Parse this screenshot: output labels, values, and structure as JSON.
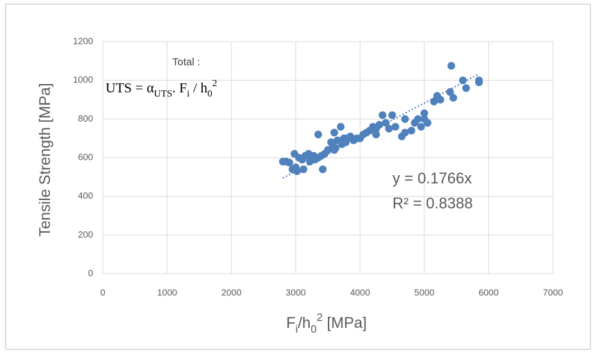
{
  "chart_data": {
    "type": "scatter",
    "title_parts": [
      {
        "text": "Total :"
      }
    ],
    "formula_parts": [
      {
        "text": "UTS = α"
      },
      {
        "text": "UTS",
        "style": "sub"
      },
      {
        "text": ". F"
      },
      {
        "text": "i",
        "style": "sub"
      },
      {
        "text": " / h"
      },
      {
        "text": "0",
        "style": "sub"
      },
      {
        "text": "2",
        "style": "sup"
      }
    ],
    "x_label_parts": [
      {
        "text": "F"
      },
      {
        "text": "i",
        "style": "sub"
      },
      {
        "text": "/h"
      },
      {
        "text": "0",
        "style": "sub"
      },
      {
        "text": "2",
        "style": "sup"
      },
      {
        "text": " [MPa]"
      }
    ],
    "y_label": "Tensile Strength [MPa]",
    "x": [
      2800,
      2850,
      2900,
      2950,
      2980,
      3000,
      3020,
      3050,
      3100,
      3120,
      3150,
      3200,
      3220,
      3250,
      3280,
      3300,
      3350,
      3400,
      3420,
      3450,
      3500,
      3550,
      3580,
      3600,
      3620,
      3650,
      3700,
      3720,
      3750,
      3780,
      3800,
      3850,
      3900,
      3950,
      4000,
      4050,
      4100,
      4150,
      4200,
      4250,
      4300,
      4350,
      4400,
      4450,
      4500,
      4550,
      4650,
      4700,
      4700,
      4800,
      4850,
      4900,
      4950,
      5000,
      5050,
      5000,
      5150,
      5200,
      5250,
      5400,
      5420,
      5450,
      5600,
      5650,
      5850,
      5850,
      3350,
      3600,
      4250,
      5200
    ],
    "values": [
      580,
      580,
      575,
      540,
      620,
      550,
      530,
      600,
      590,
      540,
      610,
      620,
      580,
      600,
      610,
      590,
      720,
      610,
      540,
      620,
      640,
      680,
      660,
      730,
      650,
      690,
      760,
      670,
      700,
      680,
      700,
      710,
      690,
      700,
      700,
      720,
      730,
      740,
      760,
      750,
      770,
      820,
      780,
      750,
      820,
      760,
      710,
      730,
      800,
      740,
      780,
      800,
      760,
      830,
      780,
      800,
      890,
      920,
      900,
      940,
      1075,
      910,
      1000,
      960,
      1000,
      990,
      600,
      640,
      720,
      910
    ],
    "color": "#4f81bd",
    "xlim": [
      0,
      7000
    ],
    "xticks": [
      0,
      1000,
      2000,
      3000,
      4000,
      5000,
      6000,
      7000
    ],
    "ylim": [
      0,
      1200
    ],
    "yticks": [
      0,
      200,
      400,
      600,
      800,
      1000,
      1200
    ],
    "grid": true,
    "trendline": {
      "slope": 0.1766,
      "xlim": [
        2800,
        5850
      ],
      "label": "y = 0.1766x",
      "r2_label": "R² = 0.8388"
    }
  }
}
